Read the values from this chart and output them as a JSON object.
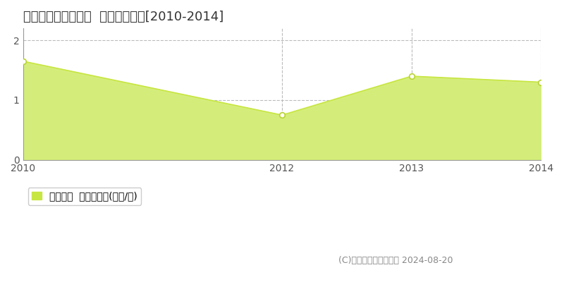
{
  "title": "肝属郡錦江町田代麓  住宅価格推移[2010-2014]",
  "years": [
    2010,
    2012,
    2013,
    2014
  ],
  "values": [
    1.65,
    0.75,
    1.4,
    1.3
  ],
  "line_color": "#c8e641",
  "fill_color": "#d4ed7a",
  "marker_color": "#ffffff",
  "marker_edge_color": "#b8d430",
  "xlim": [
    2010,
    2014
  ],
  "ylim": [
    0,
    2.2
  ],
  "yticks": [
    0,
    1,
    2
  ],
  "xticks": [
    2010,
    2012,
    2013,
    2014
  ],
  "grid_color": "#bbbbbb",
  "bg_color": "#ffffff",
  "legend_label": "住宅価格  平均坪単価(万円/坪)",
  "legend_color": "#c8e641",
  "copyright_text": "(C)土地価格ドットコム 2024-08-20",
  "title_fontsize": 13,
  "axis_fontsize": 10,
  "legend_fontsize": 10,
  "copyright_fontsize": 9
}
